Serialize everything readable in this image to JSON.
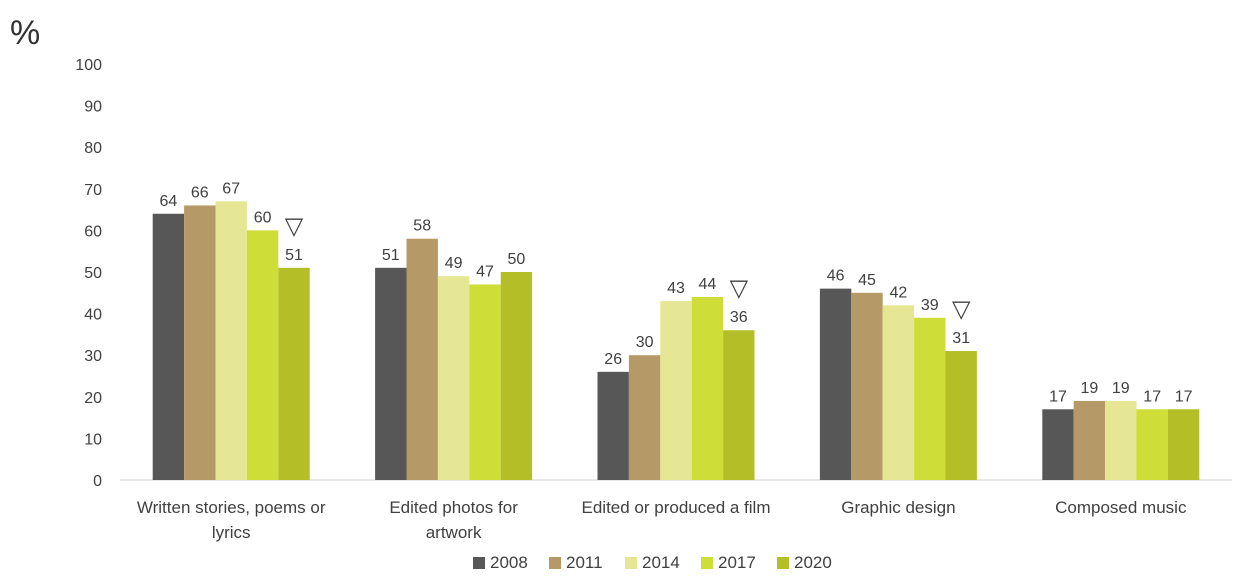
{
  "chart_data": {
    "type": "bar",
    "unit_label": "%",
    "ylim": [
      0,
      100
    ],
    "yticks": [
      0,
      10,
      20,
      30,
      40,
      50,
      60,
      70,
      80,
      90,
      100
    ],
    "grid": false,
    "legend_position": "bottom",
    "categories": [
      [
        "Written stories, poems or",
        "lyrics"
      ],
      [
        "Edited photos for",
        "artwork"
      ],
      [
        "Edited or produced a film"
      ],
      [
        "Graphic design"
      ],
      [
        "Composed music"
      ]
    ],
    "series": [
      {
        "name": "2008",
        "color": "#575757",
        "values": [
          64,
          51,
          26,
          46,
          17
        ]
      },
      {
        "name": "2011",
        "color": "#B59A67",
        "values": [
          66,
          58,
          30,
          45,
          19
        ]
      },
      {
        "name": "2014",
        "color": "#E6E794",
        "values": [
          67,
          49,
          43,
          42,
          19
        ]
      },
      {
        "name": "2017",
        "color": "#CFDD38",
        "values": [
          60,
          47,
          44,
          39,
          17
        ]
      },
      {
        "name": "2020",
        "color": "#B4BE26",
        "values": [
          51,
          50,
          36,
          31,
          17
        ]
      }
    ],
    "annotations": [
      {
        "category_index": 0,
        "symbol": "▽"
      },
      {
        "category_index": 2,
        "symbol": "▽"
      },
      {
        "category_index": 3,
        "symbol": "▽"
      }
    ]
  }
}
